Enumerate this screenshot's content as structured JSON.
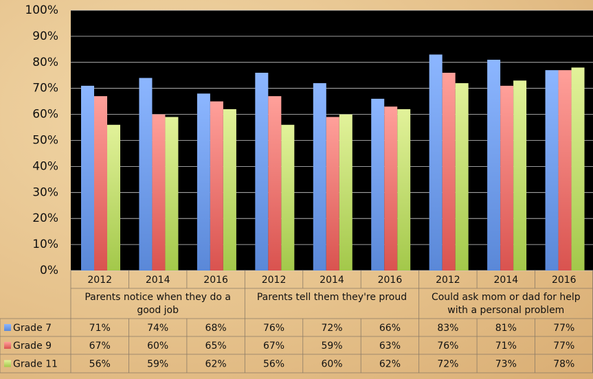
{
  "chart_data": {
    "type": "bar",
    "categories": [
      "2012",
      "2014",
      "2016",
      "2012",
      "2014",
      "2016",
      "2012",
      "2014",
      "2016"
    ],
    "groups": [
      "Parents notice when they do a good job",
      "Parents tell them they're proud",
      "Could ask mom or dad for help with a personal problem"
    ],
    "series": [
      {
        "name": "Grade 7",
        "color": "#7eaaf2",
        "values": [
          71,
          74,
          68,
          76,
          72,
          66,
          83,
          81,
          77
        ],
        "value_labels": [
          "71%",
          "74%",
          "68%",
          "76%",
          "72%",
          "66%",
          "83%",
          "81%",
          "77%"
        ]
      },
      {
        "name": "Grade 9",
        "color": "#f28b86",
        "values": [
          67,
          60,
          65,
          67,
          59,
          63,
          76,
          71,
          77
        ],
        "value_labels": [
          "67%",
          "60%",
          "65%",
          "67%",
          "59%",
          "63%",
          "76%",
          "71%",
          "77%"
        ]
      },
      {
        "name": "Grade 11",
        "color": "#cfe57c",
        "values": [
          56,
          59,
          62,
          56,
          60,
          62,
          72,
          73,
          78
        ],
        "value_labels": [
          "56%",
          "59%",
          "62%",
          "56%",
          "60%",
          "62%",
          "72%",
          "73%",
          "78%"
        ]
      }
    ],
    "ylim": [
      0,
      100
    ],
    "yticks": [
      {
        "value": 0,
        "label": "0%"
      },
      {
        "value": 10,
        "label": "10%"
      },
      {
        "value": 20,
        "label": "20%"
      },
      {
        "value": 30,
        "label": "30%"
      },
      {
        "value": 40,
        "label": "40%"
      },
      {
        "value": 50,
        "label": "50%"
      },
      {
        "value": 60,
        "label": "60%"
      },
      {
        "value": 70,
        "label": "70%"
      },
      {
        "value": 80,
        "label": "80%"
      },
      {
        "value": 90,
        "label": "90%"
      },
      {
        "value": 100,
        "label": "100%"
      }
    ],
    "grid": true,
    "legend": "table"
  }
}
